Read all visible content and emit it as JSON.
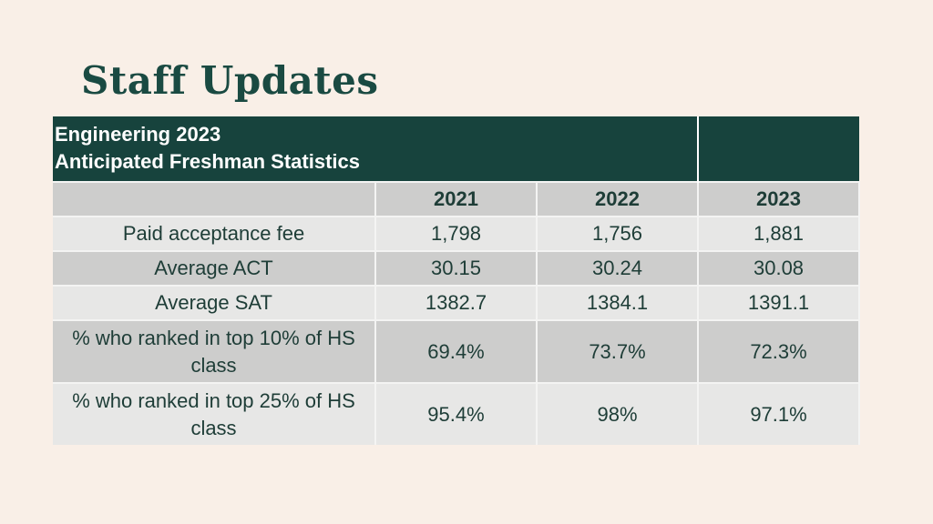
{
  "slide": {
    "title": "Staff Updates"
  },
  "table": {
    "header_line1": "Engineering 2023",
    "header_line2": "Anticipated Freshman Statistics",
    "years": [
      "2021",
      "2022",
      "2023"
    ],
    "rows": [
      {
        "label": "Paid acceptance fee",
        "values": [
          "1,798",
          "1,756",
          "1,881"
        ]
      },
      {
        "label": "Average ACT",
        "values": [
          "30.15",
          "30.24",
          "30.08"
        ]
      },
      {
        "label": "Average SAT",
        "values": [
          "1382.7",
          "1384.1",
          "1391.1"
        ]
      },
      {
        "label": "% who ranked in top 10% of HS class",
        "values": [
          "69.4%",
          "73.7%",
          "72.3%"
        ]
      },
      {
        "label": "% who ranked in top 25% of HS class",
        "values": [
          "95.4%",
          "98%",
          "97.1%"
        ]
      }
    ]
  }
}
